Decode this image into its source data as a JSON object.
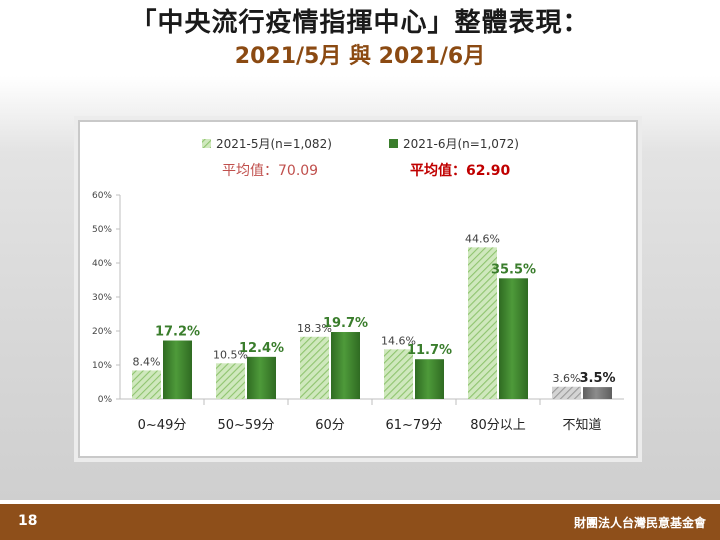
{
  "slide": {
    "title": "「中央流行疫情指揮中心」整體表現：",
    "subtitle": "2021/5月 與 2021/6月",
    "page_number": "18",
    "foundation": "財團法人台灣民意基金會"
  },
  "colors": {
    "title": "#1a1a1a",
    "subtitle": "#8b4a12",
    "series1": "#a9d18e",
    "series2": "#3a7d2c",
    "series2_label": "#3a7d2c",
    "unknown1": "#b0b0b0",
    "unknown2": "#6e6e6e",
    "avg1": "#c0504d",
    "avg2": "#c00000",
    "footer": "#8e4f1a"
  },
  "chart_data": {
    "type": "bar",
    "categories": [
      "0~49分",
      "50~59分",
      "60分",
      "61~79分",
      "80分以上",
      "不知道"
    ],
    "series": [
      {
        "name": "2021-5月(n=1,082)",
        "values": [
          8.4,
          10.5,
          18.3,
          14.6,
          44.6,
          3.6
        ],
        "labels": [
          "8.4%",
          "10.5%",
          "18.3%",
          "14.6%",
          "44.6%",
          "3.6%"
        ],
        "average_label": "平均值：70.09"
      },
      {
        "name": "2021-6月(n=1,072)",
        "values": [
          17.2,
          12.4,
          19.7,
          11.7,
          35.5,
          3.5
        ],
        "labels": [
          "17.2%",
          "12.4%",
          "19.7%",
          "11.7%",
          "35.5%",
          "3.5%"
        ],
        "average_label": "平均值：62.90"
      }
    ],
    "y_ticks": [
      "0%",
      "10%",
      "20%",
      "30%",
      "40%",
      "50%",
      "60%"
    ],
    "ylim": [
      0,
      60
    ],
    "grid": false,
    "legend": "top"
  }
}
